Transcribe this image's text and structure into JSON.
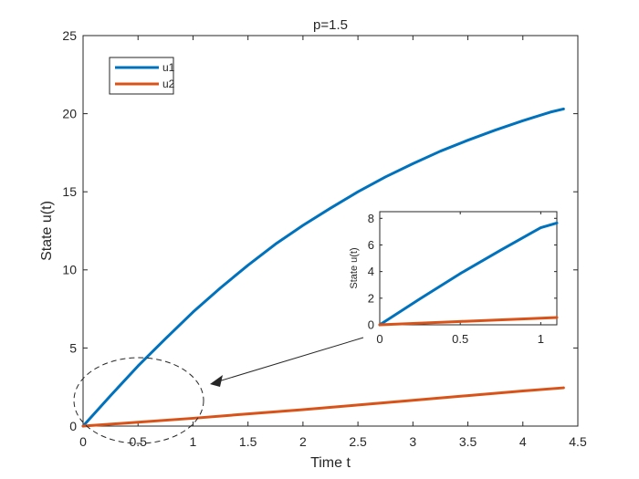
{
  "chart_data": [
    {
      "type": "line",
      "title": "p=1.5",
      "xlabel": "Time t",
      "ylabel": "State u(t)",
      "xlim": [
        0,
        4.5
      ],
      "ylim": [
        0,
        25
      ],
      "xticks": [
        0,
        0.5,
        1,
        1.5,
        2,
        2.5,
        3,
        3.5,
        4,
        4.5
      ],
      "xtick_labels": [
        "0",
        "0.5",
        "1",
        "1.5",
        "2",
        "2.5",
        "3",
        "3.5",
        "4",
        "4.5"
      ],
      "yticks": [
        0,
        5,
        10,
        15,
        20,
        25
      ],
      "ytick_labels": [
        "0",
        "5",
        "10",
        "15",
        "20",
        "25"
      ],
      "grid": false,
      "legend_position": "top-left",
      "series": [
        {
          "name": "u1",
          "color": "#0072bd",
          "x": [
            0,
            0.25,
            0.5,
            0.75,
            1.0,
            1.25,
            1.5,
            1.75,
            2.0,
            2.25,
            2.5,
            2.75,
            3.0,
            3.25,
            3.5,
            3.75,
            4.0,
            4.25,
            4.37
          ],
          "y": [
            0,
            1.95,
            3.85,
            5.6,
            7.3,
            8.85,
            10.3,
            11.65,
            12.85,
            13.95,
            15.0,
            15.95,
            16.8,
            17.6,
            18.3,
            18.95,
            19.55,
            20.1,
            20.3
          ]
        },
        {
          "name": "u2",
          "color": "#d95319",
          "x": [
            0,
            0.5,
            1.0,
            1.5,
            2.0,
            2.5,
            3.0,
            3.5,
            4.0,
            4.37
          ],
          "y": [
            0,
            0.25,
            0.5,
            0.78,
            1.05,
            1.35,
            1.65,
            1.95,
            2.25,
            2.45
          ]
        }
      ]
    },
    {
      "type": "line",
      "title": "",
      "xlabel": "",
      "ylabel": "State u(t)",
      "xlim": [
        0,
        1.1
      ],
      "ylim": [
        0,
        8.5
      ],
      "xticks": [
        0,
        0.5,
        1
      ],
      "xtick_labels": [
        "0",
        "0.5",
        "1"
      ],
      "yticks": [
        0,
        2,
        4,
        6,
        8
      ],
      "ytick_labels": [
        "0",
        "2",
        "4",
        "6",
        "8"
      ],
      "grid": false,
      "series": [
        {
          "color": "#0072bd",
          "x": [
            0,
            0.25,
            0.5,
            0.75,
            1.0,
            1.1
          ],
          "y": [
            0,
            1.95,
            3.85,
            5.6,
            7.3,
            7.65
          ]
        },
        {
          "color": "#d95319",
          "x": [
            0,
            0.5,
            1.0,
            1.1
          ],
          "y": [
            0,
            0.25,
            0.5,
            0.55
          ]
        }
      ]
    }
  ]
}
